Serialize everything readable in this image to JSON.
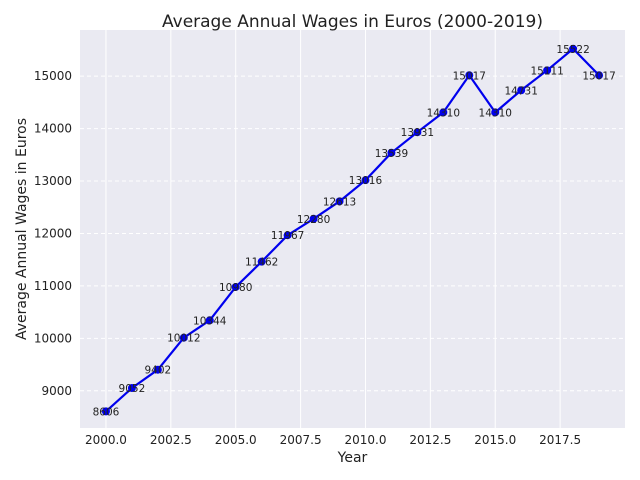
{
  "chart_data": {
    "type": "line",
    "title": "Average Annual Wages in Euros (2000-2019)",
    "xlabel": "Year",
    "ylabel": "Average Annual Wages in Euros",
    "x": [
      2000,
      2001,
      2002,
      2003,
      2004,
      2005,
      2006,
      2007,
      2008,
      2009,
      2010,
      2011,
      2012,
      2013,
      2014,
      2015,
      2016,
      2017,
      2018,
      2019
    ],
    "series": [
      {
        "values": [
          8606,
          9052,
          9402,
          10012,
          10344,
          10980,
          11462,
          11967,
          12280,
          12613,
          13016,
          13539,
          13931,
          14310,
          15017,
          14310,
          14731,
          15111,
          15522,
          15017
        ],
        "color": "#0000ee"
      }
    ],
    "xlim": [
      1999.0,
      2020.0
    ],
    "ylim": [
      8290,
      15880
    ],
    "x_ticks": [
      2000.0,
      2002.5,
      2005.0,
      2007.5,
      2010.0,
      2012.5,
      2015.0,
      2017.5
    ],
    "x_tick_labels": [
      "2000.0",
      "2002.5",
      "2005.0",
      "2007.5",
      "2010.0",
      "2012.5",
      "2015.0",
      "2017.5"
    ],
    "y_ticks": [
      9000,
      10000,
      11000,
      12000,
      13000,
      14000,
      15000
    ],
    "y_tick_labels": [
      "9000",
      "10000",
      "11000",
      "12000",
      "13000",
      "14000",
      "15000"
    ],
    "grid": true,
    "background": "#eaeaf2"
  }
}
